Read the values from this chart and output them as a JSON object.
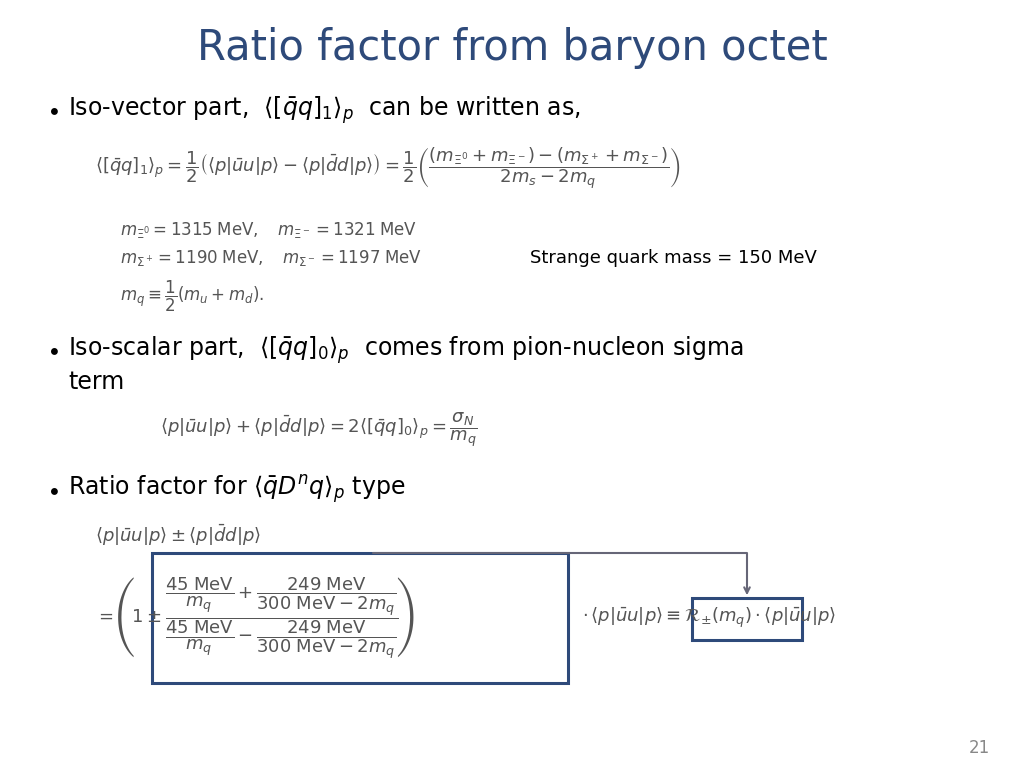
{
  "title": "Ratio factor from baryon octet",
  "title_color": "#2E4A7A",
  "title_fontsize": 30,
  "bg_color": "#FFFFFF",
  "text_color": "#000000",
  "gray": "#555555",
  "box_color": "#2E4A7A",
  "slide_number": "21",
  "fs_bullet": 17,
  "fs_eq": 13,
  "fs_small": 12,
  "fs_note": 13
}
